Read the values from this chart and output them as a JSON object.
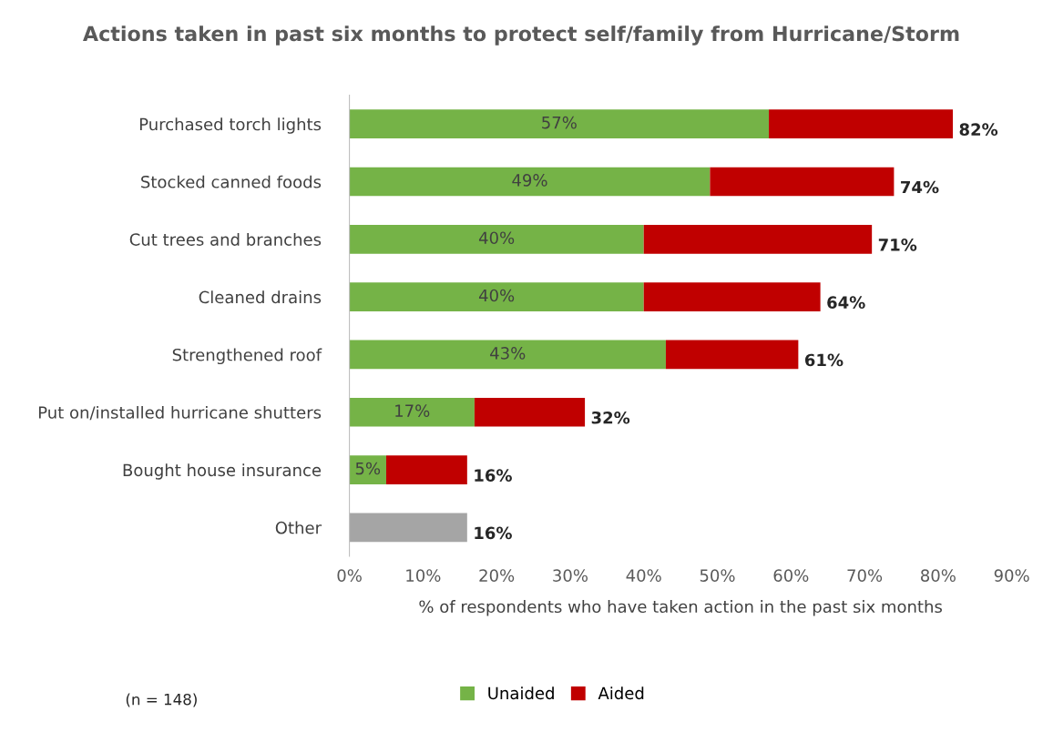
{
  "chart_data": {
    "type": "bar",
    "orientation": "horizontal",
    "stacked": true,
    "title": "Actions taken in past six months to protect self/family from Hurricane/Storm",
    "xlabel": "% of respondents who have taken action in the past six months",
    "categories": [
      "Purchased torch lights",
      "Stocked canned foods",
      "Cut trees and branches",
      "Cleaned drains",
      "Strengthened roof",
      "Put on/installed hurricane shutters",
      "Bought house insurance",
      "Other"
    ],
    "series": [
      {
        "name": "Unaided",
        "color": "#75b347",
        "colors": [
          "#75b347",
          "#75b347",
          "#75b347",
          "#75b347",
          "#75b347",
          "#75b347",
          "#75b347",
          "#a5a5a5"
        ],
        "values": [
          57,
          49,
          40,
          40,
          43,
          17,
          5,
          16
        ],
        "value_labels": [
          "57%",
          "49%",
          "40%",
          "40%",
          "43%",
          "17%",
          "5%",
          null
        ]
      },
      {
        "name": "Aided",
        "color": "#c00000",
        "values": [
          25,
          25,
          31,
          24,
          18,
          15,
          11,
          null
        ]
      }
    ],
    "totals": [
      "82%",
      "74%",
      "71%",
      "64%",
      "61%",
      "32%",
      "16%",
      "16%"
    ],
    "xlim": [
      0,
      90
    ],
    "xticks": [
      {
        "value": 0,
        "label": "0%"
      },
      {
        "value": 10,
        "label": "10%"
      },
      {
        "value": 20,
        "label": "20%"
      },
      {
        "value": 30,
        "label": "30%"
      },
      {
        "value": 40,
        "label": "40%"
      },
      {
        "value": 50,
        "label": "50%"
      },
      {
        "value": 60,
        "label": "60%"
      },
      {
        "value": 70,
        "label": "70%"
      },
      {
        "value": 80,
        "label": "80%"
      },
      {
        "value": 90,
        "label": "90%"
      }
    ],
    "grid": false,
    "legend": "bottom",
    "annotations": [
      "(n = 148)"
    ]
  }
}
